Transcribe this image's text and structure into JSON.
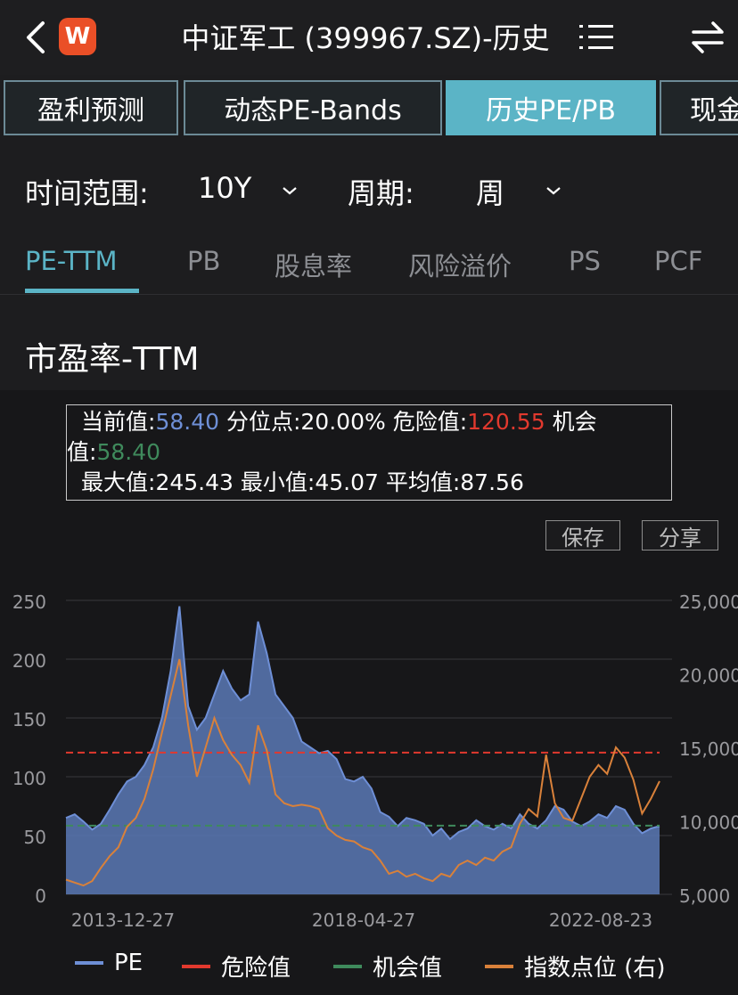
{
  "header": {
    "title": "中证军工 (399967.SZ)-历史",
    "logo_text": "W",
    "icons": [
      "chevron-left-icon",
      "app-logo-icon",
      "menu-list-icon",
      "swap-icon"
    ],
    "logo_color": "#ea4f27"
  },
  "top_tabs": [
    {
      "label": "盈利预测",
      "active": false
    },
    {
      "label": "动态PE-Bands",
      "active": false
    },
    {
      "label": "历史PE/PB",
      "active": true
    },
    {
      "label": "现金",
      "active": false
    }
  ],
  "filters": {
    "range_label": "时间范围:",
    "range_value": "10Y",
    "period_label": "周期:",
    "period_value": "周"
  },
  "metric_tabs": [
    {
      "label": "PE-TTM",
      "active": true
    },
    {
      "label": "PB",
      "active": false
    },
    {
      "label": "股息率",
      "active": false
    },
    {
      "label": "风险溢价",
      "active": false
    },
    {
      "label": "PS",
      "active": false
    },
    {
      "label": "PCF",
      "active": false
    }
  ],
  "section_title": "市盈率-TTM",
  "info": {
    "current_label": "当前值:",
    "current_value": "58.40",
    "percentile_label": "分位点:",
    "percentile_value": "20.00%",
    "danger_label": "危险值:",
    "danger_value": "120.55",
    "opportunity_label_a": "机会",
    "opportunity_label_b": "值:",
    "opportunity_value": "58.40",
    "max_label": "最大值:",
    "max_value": "245.43",
    "min_label": "最小值:",
    "min_value": "45.07",
    "avg_label": "平均值:",
    "avg_value": "87.56"
  },
  "buttons": {
    "save_label": "保存",
    "share_label": "分享"
  },
  "chart_data": {
    "type": "area",
    "x_ticks": [
      "2013-12-27",
      "2018-04-27",
      "2022-08-23"
    ],
    "y_left_ticks": [
      "0",
      "50",
      "100",
      "150",
      "200",
      "250"
    ],
    "y_right_ticks": [
      "5,000",
      "10,000",
      "15,000",
      "20,000",
      "25,000"
    ],
    "ylim_left": [
      0,
      250
    ],
    "ylim_right": [
      5000,
      25000
    ],
    "danger_level": 120.55,
    "opportunity_level": 58.4,
    "grid": true,
    "legend_position": "bottom",
    "colors": {
      "pe": "#6e8fd6",
      "danger": "#e2392e",
      "opportunity": "#3f8a5c",
      "index": "#d9813a"
    },
    "series": [
      {
        "name": "PE",
        "values": [
          65,
          68,
          62,
          55,
          60,
          72,
          85,
          96,
          100,
          110,
          125,
          150,
          190,
          245,
          160,
          140,
          150,
          170,
          190,
          175,
          165,
          170,
          232,
          205,
          170,
          160,
          150,
          130,
          125,
          120,
          122,
          115,
          98,
          96,
          100,
          90,
          70,
          66,
          58,
          65,
          63,
          60,
          50,
          56,
          47,
          53,
          56,
          63,
          58,
          55,
          60,
          56,
          68,
          60,
          56,
          63,
          75,
          72,
          62,
          58,
          62,
          68,
          65,
          75,
          72,
          60,
          52,
          56,
          58
        ]
      },
      {
        "name": "危险值",
        "values": [
          120.55,
          120.55,
          120.55,
          120.55,
          120.55,
          120.55,
          120.55,
          120.55,
          120.55,
          120.55,
          120.55,
          120.55,
          120.55,
          120.55,
          120.55,
          120.55,
          120.55,
          120.55,
          120.55,
          120.55,
          120.55,
          120.55,
          120.55,
          120.55,
          120.55,
          120.55,
          120.55,
          120.55,
          120.55,
          120.55,
          120.55,
          120.55,
          120.55,
          120.55,
          120.55,
          120.55,
          120.55,
          120.55,
          120.55,
          120.55,
          120.55,
          120.55,
          120.55,
          120.55,
          120.55,
          120.55,
          120.55,
          120.55,
          120.55,
          120.55,
          120.55,
          120.55,
          120.55,
          120.55,
          120.55,
          120.55,
          120.55,
          120.55,
          120.55,
          120.55,
          120.55,
          120.55,
          120.55,
          120.55,
          120.55,
          120.55,
          120.55,
          120.55,
          120.55
        ]
      },
      {
        "name": "机会值",
        "values": [
          58.4,
          58.4,
          58.4,
          58.4,
          58.4,
          58.4,
          58.4,
          58.4,
          58.4,
          58.4,
          58.4,
          58.4,
          58.4,
          58.4,
          58.4,
          58.4,
          58.4,
          58.4,
          58.4,
          58.4,
          58.4,
          58.4,
          58.4,
          58.4,
          58.4,
          58.4,
          58.4,
          58.4,
          58.4,
          58.4,
          58.4,
          58.4,
          58.4,
          58.4,
          58.4,
          58.4,
          58.4,
          58.4,
          58.4,
          58.4,
          58.4,
          58.4,
          58.4,
          58.4,
          58.4,
          58.4,
          58.4,
          58.4,
          58.4,
          58.4,
          58.4,
          58.4,
          58.4,
          58.4,
          58.4,
          58.4,
          58.4,
          58.4,
          58.4,
          58.4,
          58.4,
          58.4,
          58.4,
          58.4,
          58.4,
          58.4,
          58.4,
          58.4,
          58.4
        ]
      },
      {
        "name": "指数点位(右)",
        "axis": "right",
        "values": [
          6000,
          5800,
          5600,
          5900,
          6800,
          7600,
          8200,
          9600,
          10200,
          11500,
          13500,
          16000,
          18500,
          21000,
          16500,
          13000,
          15000,
          17000,
          15500,
          14500,
          13800,
          12600,
          16500,
          14800,
          11800,
          11200,
          11000,
          11100,
          11000,
          10800,
          9500,
          9000,
          8700,
          8600,
          8200,
          8000,
          7300,
          6400,
          6600,
          6200,
          6400,
          6100,
          5900,
          6400,
          6200,
          7000,
          7300,
          7000,
          7500,
          7300,
          7900,
          8200,
          9800,
          10800,
          10300,
          14500,
          11200,
          10200,
          10000,
          11500,
          13000,
          13800,
          13200,
          15000,
          14300,
          12800,
          10500,
          11500,
          12700
        ]
      }
    ]
  },
  "legend": [
    {
      "label": "PE",
      "color": "#6e8fd6"
    },
    {
      "label": "危险值",
      "color": "#e2392e"
    },
    {
      "label": "机会值",
      "color": "#3f8a5c"
    },
    {
      "label": "指数点位 (右)",
      "color": "#d9813a"
    }
  ]
}
